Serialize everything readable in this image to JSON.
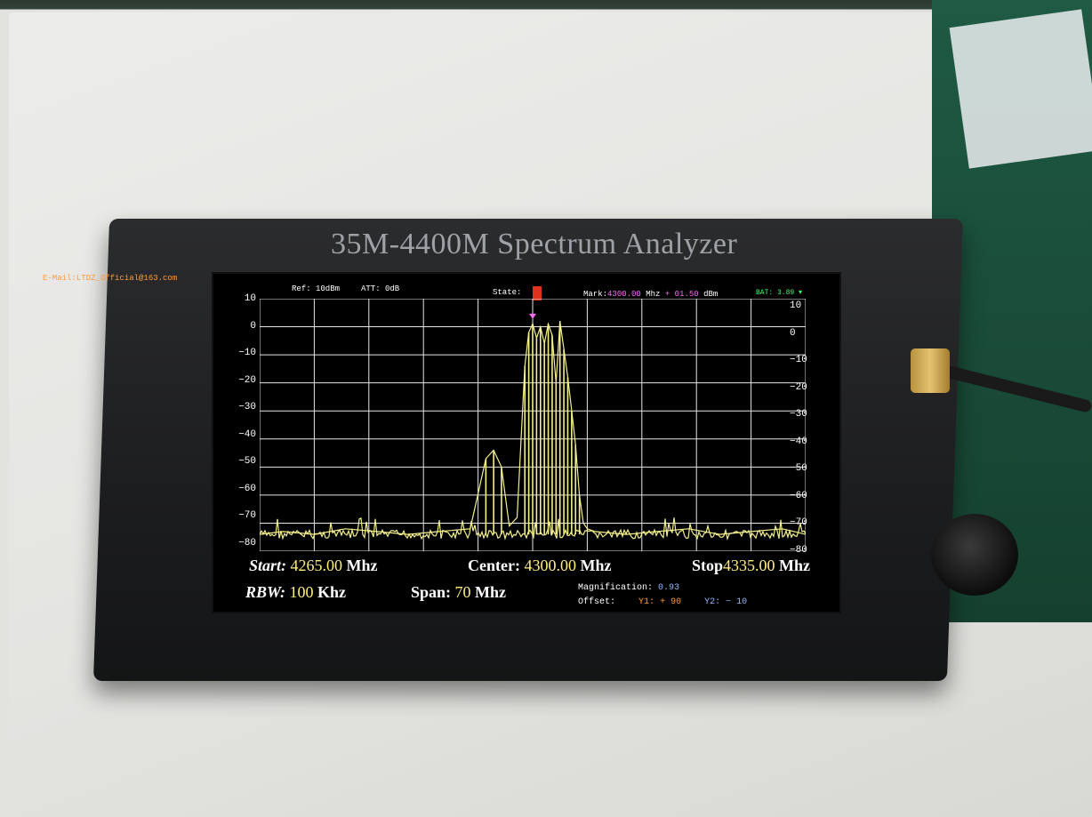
{
  "device_title": "35M-4400M Spectrum Analyzer",
  "header": {
    "email": "E-Mail:LTDZ_Official@163.com",
    "ref": "Ref: 10dBm",
    "att": "ATT:  0dB",
    "state_label": "State:",
    "mark_label": "Mark:",
    "mark_freq": "4300.00",
    "mark_freq_unit": "Mhz",
    "mark_level": "+ 01.50",
    "mark_level_unit": "dBm",
    "battery": "BAT: 3.89 ▾"
  },
  "axis_left": [
    "10",
    "0",
    "−10",
    "−20",
    "−30",
    "−40",
    "−50",
    "−60",
    "−70",
    "−80"
  ],
  "axis_right": [
    "10",
    "0",
    "−10",
    "−20",
    "−30",
    "−40",
    "−50",
    "−60",
    "−70",
    "−80"
  ],
  "footer": {
    "start_label": "Start:",
    "start_value": "4265.00",
    "start_unit": "Mhz",
    "center_label": "Center:",
    "center_value": "4300.00",
    "center_unit": "Mhz",
    "stop_label": "Stop",
    "stop_value": "4335.00",
    "stop_unit": "Mhz",
    "rbw_label": "RBW:",
    "rbw_value": "100",
    "rbw_unit": "Khz",
    "span_label": "Span:",
    "span_value": "70",
    "span_unit": "Mhz",
    "magnification_label": "Magnification:",
    "magnification_value": "0.93",
    "offset_label": "Offset:",
    "y1_label": "Y1:",
    "y1_value": "+ 90",
    "y2_label": "Y2:",
    "y2_value": "−  10"
  },
  "colors": {
    "trace": "#f4f08a",
    "grid": "#e6e6e6",
    "marker": "#ff6cff",
    "state": "#e0301e"
  },
  "chart_data": {
    "type": "line",
    "x_unit": "Mhz",
    "y_unit": "dBm",
    "xlim": [
      4265.0,
      4335.0
    ],
    "ylim": [
      -80,
      10
    ],
    "y_ticks": [
      10,
      0,
      -10,
      -20,
      -30,
      -40,
      -50,
      -60,
      -70,
      -80
    ],
    "grid": true,
    "marker": {
      "x": 4300.0,
      "y": 1.5
    },
    "series": [
      {
        "x": [
          4265,
          4268,
          4272,
          4276,
          4280,
          4284,
          4288,
          4292,
          4294,
          4295,
          4296,
          4297,
          4298,
          4299,
          4299.5,
          4300,
          4300.5,
          4301,
          4301.5,
          4302,
          4302.5,
          4303,
          4303.5,
          4304,
          4304.5,
          4305,
          4305.5,
          4306,
          4306.5,
          4307,
          4308,
          4312,
          4316,
          4320,
          4324,
          4328,
          4332,
          4335
        ],
        "y": [
          -74,
          -73,
          -74,
          -72,
          -73,
          -74,
          -73,
          -72,
          -47,
          -44,
          -50,
          -71,
          -68,
          -14,
          -2,
          1,
          -4,
          0,
          -6,
          1,
          -3,
          -20,
          2,
          -8,
          -18,
          -30,
          -42,
          -60,
          -70,
          -72,
          -73,
          -74,
          -73,
          -72,
          -74,
          -73,
          -72,
          -74
        ]
      }
    ]
  }
}
